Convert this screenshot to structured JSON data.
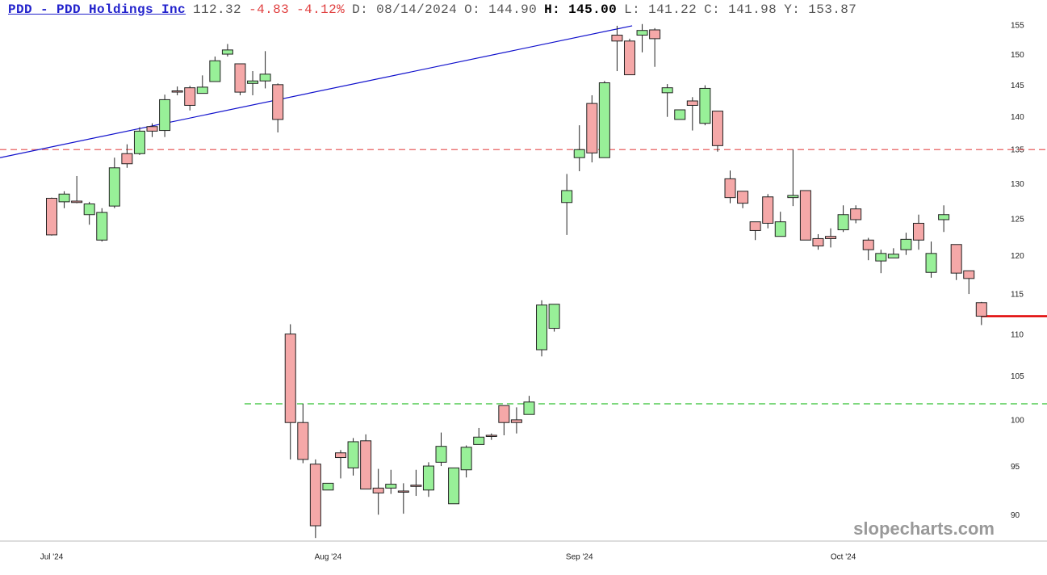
{
  "header": {
    "link": "PDD - PDD Holdings Inc",
    "last": "112.32",
    "change": "-4.83",
    "change_pct": "-4.12%",
    "date": "D: 08/14/2024",
    "open": "O: 144.90",
    "high": "H: 145.00",
    "low": "L: 141.22",
    "close": "C: 141.98",
    "prev": "Y: 153.87"
  },
  "watermark": "slopecharts.com",
  "chart_data": {
    "type": "candlestick",
    "log": true,
    "ylim": [
      87.5,
      159.5
    ],
    "yticks": [
      155,
      150,
      145,
      140,
      135,
      130,
      125,
      120,
      115,
      110,
      105,
      100,
      95,
      90
    ],
    "up_color": "#98f098",
    "down_color": "#f5a8a8",
    "categories": [
      "Jul '24",
      null,
      null,
      null,
      null,
      null,
      null,
      null,
      null,
      null,
      null,
      null,
      null,
      null,
      null,
      null,
      null,
      null,
      null,
      null,
      null,
      null,
      "Aug '24",
      null,
      null,
      null,
      null,
      null,
      null,
      null,
      null,
      null,
      null,
      null,
      null,
      null,
      null,
      null,
      null,
      null,
      null,
      null,
      "Sep '24",
      null,
      null,
      null,
      null,
      null,
      null,
      null,
      null,
      null,
      null,
      null,
      null,
      null,
      null,
      null,
      null,
      null,
      null,
      null,
      null,
      "Oct '24",
      null,
      null,
      null,
      null,
      null,
      null,
      null,
      null,
      null,
      null,
      null
    ],
    "open": [
      128.0,
      127.5,
      127.6,
      125.7,
      122.2,
      126.9,
      134.5,
      134.5,
      138.6,
      138.0,
      144.2,
      144.7,
      143.8,
      145.7,
      150.2,
      148.6,
      145.4,
      145.8,
      145.2,
      110.1,
      99.8,
      95.3,
      92.6,
      96.5,
      94.9,
      97.8,
      92.8,
      92.8,
      92.5,
      93.1,
      92.6,
      95.5,
      91.2,
      94.7,
      97.4,
      98.4,
      101.7,
      100.1,
      100.7,
      108.2,
      110.8,
      127.4,
      133.9,
      142.2,
      133.9,
      153.4,
      152.4,
      153.4,
      154.3,
      143.9,
      139.7,
      142.6,
      139.1,
      141.0,
      130.8,
      129.0,
      124.7,
      128.2,
      122.7,
      128.1,
      129.1,
      122.4,
      122.7,
      123.6,
      126.5,
      122.2,
      119.4,
      119.8,
      120.9,
      124.5,
      117.9,
      125.0,
      121.6,
      118.1,
      114.0
    ],
    "high": [
      128.1,
      129.0,
      131.2,
      127.5,
      126.6,
      133.9,
      135.9,
      138.5,
      139.1,
      143.6,
      144.9,
      145.0,
      146.7,
      149.8,
      151.9,
      148.6,
      147.4,
      150.7,
      145.4,
      111.3,
      101.9,
      95.8,
      93.3,
      96.8,
      98.1,
      98.5,
      94.8,
      94.7,
      93.3,
      94.7,
      95.5,
      98.7,
      94.9,
      97.3,
      99.2,
      98.6,
      101.7,
      101.5,
      102.8,
      114.3,
      113.8,
      131.5,
      138.8,
      143.5,
      145.8,
      155.0,
      152.8,
      155.3,
      154.6,
      145.3,
      141.2,
      143.2,
      145.1,
      141.0,
      132.0,
      129.0,
      124.7,
      128.6,
      126.1,
      135.1,
      129.1,
      123.0,
      123.8,
      127.0,
      127.0,
      122.5,
      120.9,
      121.1,
      123.2,
      125.7,
      122.0,
      127.0,
      121.6,
      118.1,
      114.1
    ],
    "low": [
      122.8,
      126.6,
      127.3,
      124.3,
      122.0,
      126.6,
      132.4,
      134.3,
      137.0,
      137.0,
      143.5,
      141.1,
      143.8,
      145.7,
      149.8,
      143.5,
      143.5,
      144.6,
      137.7,
      95.8,
      95.4,
      87.8,
      92.6,
      93.8,
      94.1,
      92.7,
      90.1,
      92.2,
      90.2,
      92.0,
      91.9,
      95.1,
      91.2,
      93.9,
      97.4,
      97.9,
      98.4,
      98.6,
      100.7,
      107.4,
      110.4,
      122.9,
      131.9,
      133.2,
      133.9,
      147.4,
      146.8,
      150.5,
      148.1,
      140.1,
      139.7,
      138.0,
      138.8,
      134.8,
      127.3,
      126.6,
      122.2,
      123.8,
      122.7,
      126.9,
      122.2,
      120.9,
      121.2,
      123.3,
      124.5,
      119.5,
      117.8,
      119.8,
      120.2,
      120.9,
      117.2,
      123.3,
      116.9,
      115.1,
      111.2
    ],
    "close": [
      122.9,
      128.6,
      127.4,
      127.2,
      126.0,
      132.4,
      133.0,
      137.9,
      137.9,
      142.8,
      144.1,
      141.9,
      144.8,
      149.1,
      150.9,
      144.0,
      145.8,
      146.9,
      139.7,
      99.8,
      95.8,
      89.0,
      93.3,
      96.0,
      97.7,
      92.7,
      92.3,
      93.2,
      92.4,
      93.0,
      95.1,
      97.2,
      94.9,
      97.1,
      98.2,
      98.3,
      99.8,
      99.8,
      102.1,
      113.7,
      113.8,
      129.1,
      135.1,
      134.6,
      145.5,
      152.4,
      146.8,
      154.2,
      152.8,
      144.7,
      141.2,
      141.9,
      144.6,
      135.7,
      128.1,
      127.3,
      123.5,
      124.5,
      124.7,
      128.4,
      122.2,
      121.4,
      122.4,
      125.7,
      125.0,
      120.9,
      120.4,
      120.3,
      122.3,
      122.2,
      120.4,
      125.7,
      117.8,
      117.1,
      112.3
    ],
    "trendline": {
      "color": "#1010cc",
      "x": [
        -4.11,
        46.2
      ],
      "y": [
        133.9,
        155.0
      ]
    },
    "hlines": [
      {
        "value": 135.1,
        "color": "#e86060",
        "dash": true
      },
      {
        "value": 101.9,
        "color": "#30c030",
        "dash": true,
        "from": 15.35
      },
      {
        "value": 112.3,
        "color": "#e00000",
        "dash": false,
        "from": 74
      }
    ]
  }
}
